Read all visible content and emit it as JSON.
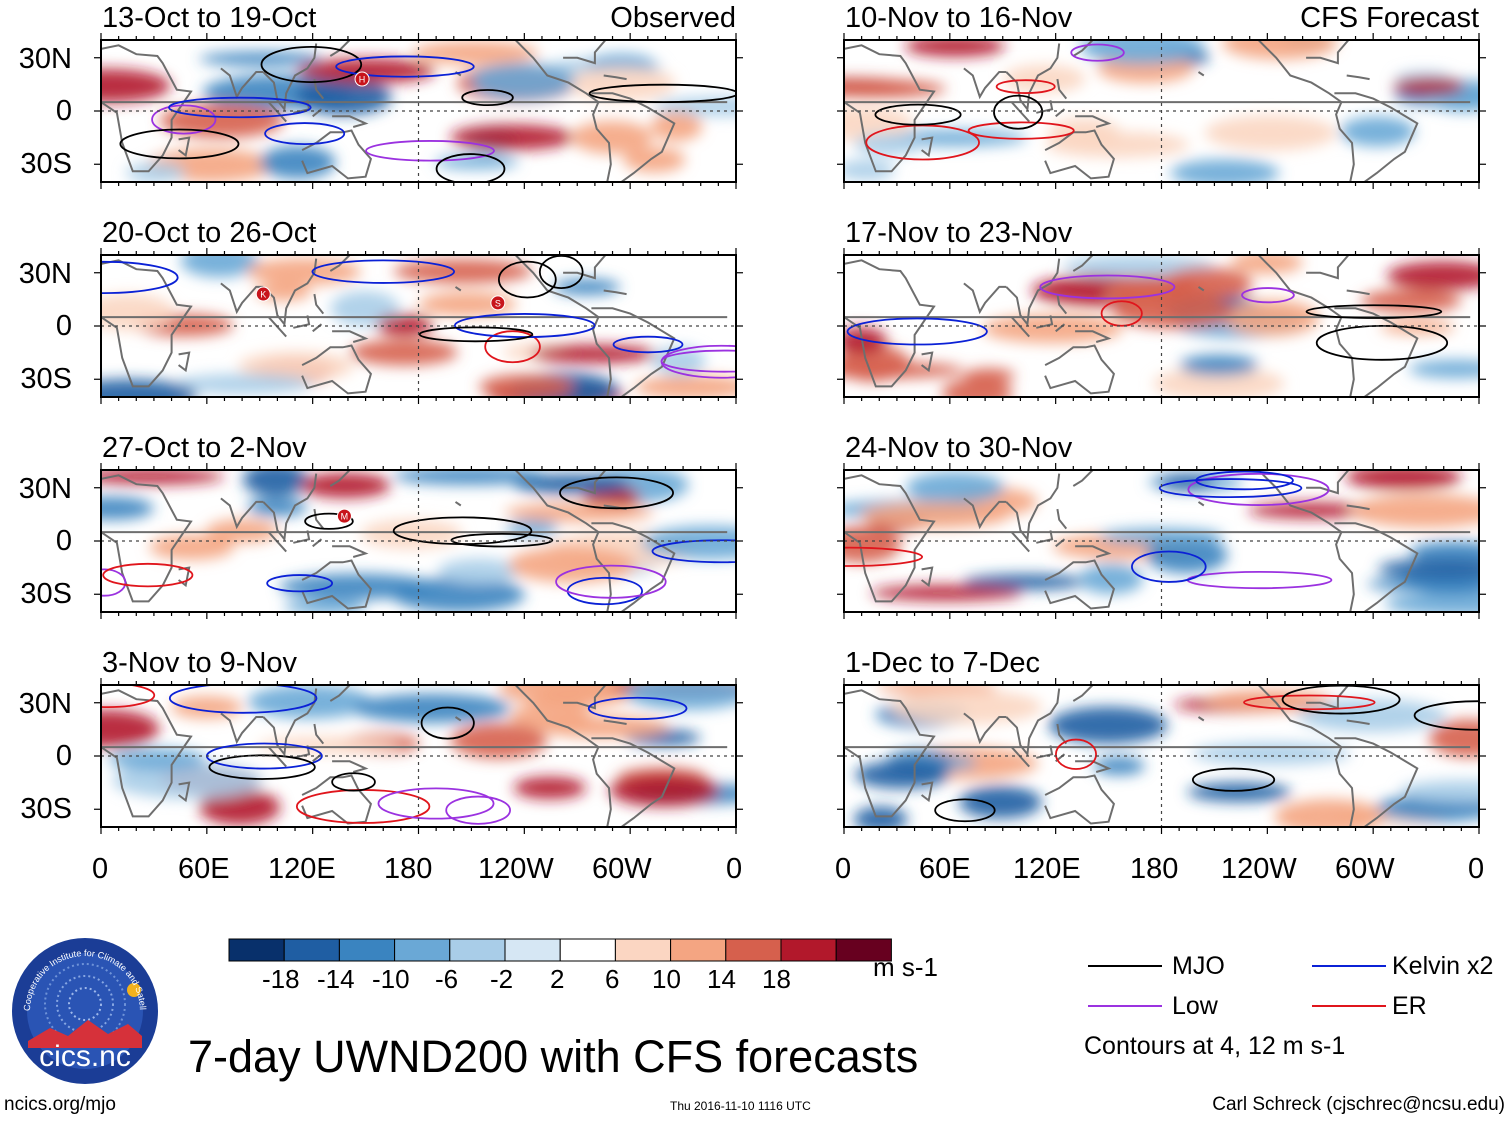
{
  "figure": {
    "main_title": "7-day UWND200 with CFS forecasts",
    "observed_label": "Observed",
    "forecast_label": "CFS Forecast",
    "colorbar_units": "m s-1",
    "contour_note": "Contours at 4, 12 m s-1",
    "website": "ncics.org/mjo",
    "timestamp": "Thu 2016-11-10 1116 UTC",
    "author": "Carl Schreck (cjschrec@ncsu.edu)",
    "logo_text": "cics.nc",
    "logo_ring_text": "Cooperative Institute for Climate and Satellites"
  },
  "chart_data": {
    "type": "heatmap",
    "variable": "200-hPa zonal wind anomaly (UWND200)",
    "units": "m s-1",
    "panels": [
      {
        "title": "13-Oct to 19-Oct",
        "kind": "Observed",
        "storms": [
          "H"
        ]
      },
      {
        "title": "20-Oct to 26-Oct",
        "kind": "Observed",
        "storms": [
          "K",
          "S"
        ]
      },
      {
        "title": "27-Oct to 2-Nov",
        "kind": "Observed",
        "storms": [
          "M"
        ]
      },
      {
        "title": "3-Nov to 9-Nov",
        "kind": "Observed",
        "storms": []
      },
      {
        "title": "10-Nov to 16-Nov",
        "kind": "CFS Forecast",
        "storms": []
      },
      {
        "title": "17-Nov to 23-Nov",
        "kind": "CFS Forecast",
        "storms": []
      },
      {
        "title": "24-Nov to 30-Nov",
        "kind": "CFS Forecast",
        "storms": []
      },
      {
        "title": "1-Dec to 7-Dec",
        "kind": "CFS Forecast",
        "storms": []
      }
    ],
    "lat_ticks": [
      "30N",
      "0",
      "30S"
    ],
    "lat_range": [
      -40,
      40
    ],
    "lon_ticks": [
      "0",
      "60E",
      "120E",
      "180",
      "120W",
      "60W",
      "0"
    ],
    "lon_range": [
      0,
      360
    ],
    "colorbar": {
      "levels": [
        "-18",
        "-14",
        "-10",
        "-6",
        "-2",
        "2",
        "6",
        "10",
        "14",
        "18"
      ],
      "colors": [
        "#08306b",
        "#1f5ea3",
        "#3a84c0",
        "#6aa8d6",
        "#a9cde8",
        "#d6e7f4",
        "#ffffff",
        "#fbd6c2",
        "#f4a582",
        "#d6604d",
        "#b2182b",
        "#67001f"
      ]
    },
    "legend": [
      {
        "label": "MJO",
        "color": "#000000"
      },
      {
        "label": "Kelvin x2",
        "color": "#0b21d6"
      },
      {
        "label": "Low",
        "color": "#9b32e0"
      },
      {
        "label": "ER",
        "color": "#e0151c"
      }
    ]
  }
}
